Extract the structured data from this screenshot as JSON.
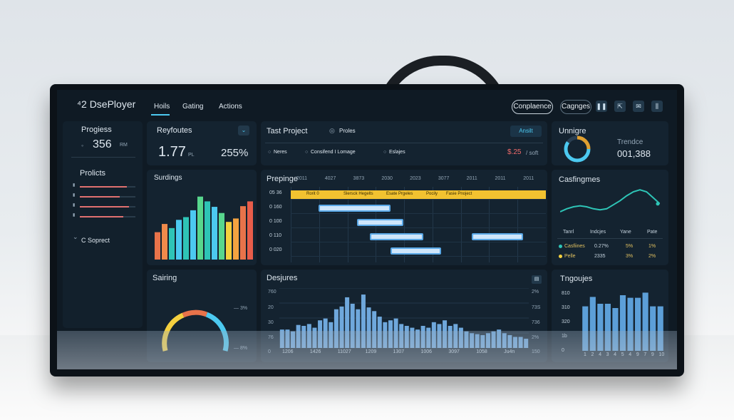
{
  "header": {
    "logo": "⁴2 DsePloyer",
    "nav": [
      "Hoils",
      "Gating",
      "Actions"
    ],
    "btn_compliance": "Conplaence",
    "btn_changes": "Cagnges",
    "icons": [
      "play-pause-icon",
      "export-icon",
      "mail-icon",
      "columns-icon"
    ]
  },
  "sidebar": {
    "progress_title": "Progiess",
    "progress_value": "356",
    "progress_unit": "RM",
    "projects_title": "Prolicts",
    "project_bars": [
      0.85,
      0.72,
      0.88,
      0.78
    ],
    "footer": "C Soprect"
  },
  "kpi": {
    "title": "Reyfoutes",
    "value": "1.77",
    "unit": "PL",
    "percent": "255%"
  },
  "bar_panel": {
    "title": "Surdings",
    "chart_data": {
      "type": "bar",
      "values": [
        40,
        52,
        46,
        58,
        62,
        72,
        92,
        85,
        77,
        68,
        55,
        60,
        78,
        85
      ],
      "colors": [
        "#e8734a",
        "#f08a4b",
        "#2ec4b6",
        "#4cc9f0",
        "#2ec4b6",
        "#4cc9f0",
        "#58d68d",
        "#2ec4b6",
        "#4cc9f0",
        "#58d68d",
        "#f4d03f",
        "#f4a340",
        "#e8734a",
        "#e85d4a"
      ]
    }
  },
  "project": {
    "title": "Tast Project",
    "tag": "Proles",
    "action": "Ansilt",
    "opts": [
      "Neres",
      "Consifend I Lomage",
      "Eslajes"
    ],
    "amount": "$.25",
    "amount_suffix": "/ soft"
  },
  "gantt": {
    "title": "Prepinge",
    "cols": [
      "2011",
      "4027",
      "3873",
      "2030",
      "2023",
      "3077",
      "2011",
      "2011",
      "2011"
    ],
    "row_labels": [
      "05 36",
      "0 160",
      "0 100",
      "0 110",
      "0 020"
    ],
    "banner_items": [
      "Rorit 0",
      "Slersck Hegelts",
      "Esate Prgeles",
      "Pocily",
      "Fasie Pnoject"
    ],
    "tasks": [
      {
        "row": 1,
        "start": 0.11,
        "end": 0.39
      },
      {
        "row": 2,
        "start": 0.26,
        "end": 0.44
      },
      {
        "row": 3,
        "start": 0.31,
        "end": 0.52
      },
      {
        "row": 3,
        "start": 0.71,
        "end": 0.91
      },
      {
        "row": 4,
        "start": 0.39,
        "end": 0.59
      }
    ]
  },
  "gauge_panel": {
    "title": "Sairing",
    "label_top": "— 3%",
    "label_bottom": "— 8%"
  },
  "bottom_chart": {
    "title": "Desjures",
    "y_left": [
      "760",
      "20",
      "30",
      "76",
      "0"
    ],
    "y_right": [
      "2%",
      "73S",
      "736",
      "2%",
      "150"
    ],
    "x_ticks": [
      "1206",
      "1426",
      "11027",
      "1209",
      "1307",
      "1006",
      "3097",
      "1058",
      "Ju4n"
    ],
    "chart_data": {
      "type": "bar",
      "values": [
        20,
        20,
        18,
        25,
        24,
        26,
        22,
        30,
        32,
        28,
        42,
        45,
        55,
        48,
        42,
        58,
        44,
        40,
        34,
        28,
        30,
        32,
        26,
        24,
        22,
        20,
        24,
        22,
        28,
        26,
        30,
        24,
        26,
        22,
        18,
        16,
        15,
        14,
        16,
        18,
        20,
        16,
        14,
        12,
        12,
        10
      ],
      "ylim": [
        0,
        65
      ]
    }
  },
  "ring_panel": {
    "title": "Unnigre",
    "subtitle": "Trendce",
    "value": "001,388",
    "chart_data": {
      "type": "pie",
      "values": [
        0.25,
        0.6,
        0.15
      ],
      "colors": [
        "#e0a030",
        "#4cc9f0",
        "#2a3f52"
      ]
    }
  },
  "line_panel": {
    "title": "Casfingmes",
    "x_ticks": [
      "Tanrl",
      "Indcjes",
      "Yane",
      "Pate"
    ],
    "rows": [
      {
        "label": "Casfiines",
        "a": "0.27%",
        "b": "5%",
        "c": "1%",
        "dot_color": "#2ec4b6"
      },
      {
        "label": "Pelle",
        "a": "2335",
        "b": "3%",
        "c": "2%",
        "dot_color": "#f4d03f"
      }
    ],
    "chart_data": {
      "type": "line",
      "values": [
        30,
        36,
        40,
        42,
        40,
        36,
        34,
        36,
        44,
        52,
        62,
        70,
        74,
        70,
        58,
        46
      ],
      "ylim": [
        0,
        80
      ]
    }
  },
  "small_bar_panel": {
    "title": "Tngoujes",
    "y_labels": [
      "810",
      "310",
      "320",
      "1b",
      "0"
    ],
    "x_ticks": [
      "1",
      "2",
      "4",
      "3",
      "4",
      "5",
      "4",
      "9",
      "7",
      "9",
      "10"
    ],
    "chart_data": {
      "type": "bar",
      "categories": [
        "1",
        "2",
        "4",
        "3",
        "4",
        "5",
        "4",
        "9",
        "7",
        "9",
        "10"
      ],
      "values": [
        52,
        63,
        55,
        55,
        50,
        65,
        62,
        62,
        68,
        52,
        52
      ],
      "ylim": [
        0,
        70
      ]
    }
  }
}
